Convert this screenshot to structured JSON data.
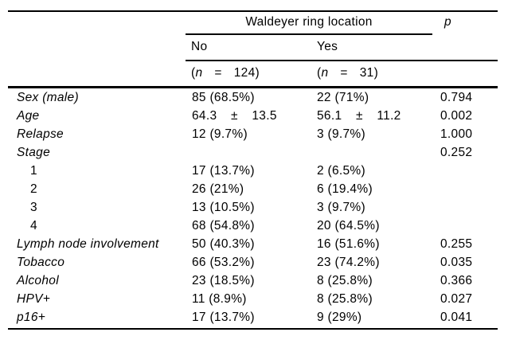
{
  "table": {
    "header": {
      "spanner": "Waldeyer ring location",
      "p_label": "p",
      "group_no": "No",
      "group_yes": "Yes",
      "n_no": {
        "paren": "(",
        "n": "n",
        "eq": "=",
        "val": "124)"
      },
      "n_yes": {
        "paren": "(",
        "n": "n",
        "eq": "=",
        "val": "31)"
      }
    },
    "rows": [
      {
        "label": "Sex (male)",
        "no": "85 (68.5%)",
        "yes": "22 (71%)",
        "p": "0.794"
      },
      {
        "label": "Age",
        "no": "64.3 ± 13.5",
        "yes": "56.1 ± 11.2",
        "p": "0.002"
      },
      {
        "label": "Relapse",
        "no": "12 (9.7%)",
        "yes": "3 (9.7%)",
        "p": "1.000"
      },
      {
        "label": "Stage",
        "no": "",
        "yes": "",
        "p": "0.252"
      },
      {
        "label": "1",
        "no": "17 (13.7%)",
        "yes": "2 (6.5%)",
        "p": ""
      },
      {
        "label": "2",
        "no": "26 (21%)",
        "yes": "6 (19.4%)",
        "p": ""
      },
      {
        "label": "3",
        "no": "13 (10.5%)",
        "yes": "3 (9.7%)",
        "p": ""
      },
      {
        "label": "4",
        "no": "68 (54.8%)",
        "yes": "20 (64.5%)",
        "p": ""
      },
      {
        "label": "Lymph node involvement",
        "no": "50 (40.3%)",
        "yes": "16 (51.6%)",
        "p": "0.255"
      },
      {
        "label": "Tobacco",
        "no": "66 (53.2%)",
        "yes": "23 (74.2%)",
        "p": "0.035"
      },
      {
        "label": "Alcohol",
        "no": "23 (18.5%)",
        "yes": "8 (25.8%)",
        "p": "0.366"
      },
      {
        "label": "HPV+",
        "no": "11 (8.9%)",
        "yes": "8 (25.8%)",
        "p": "0.027"
      },
      {
        "label": "p16+",
        "no": "17 (13.7%)",
        "yes": "9 (29%)",
        "p": "0.041"
      }
    ]
  }
}
